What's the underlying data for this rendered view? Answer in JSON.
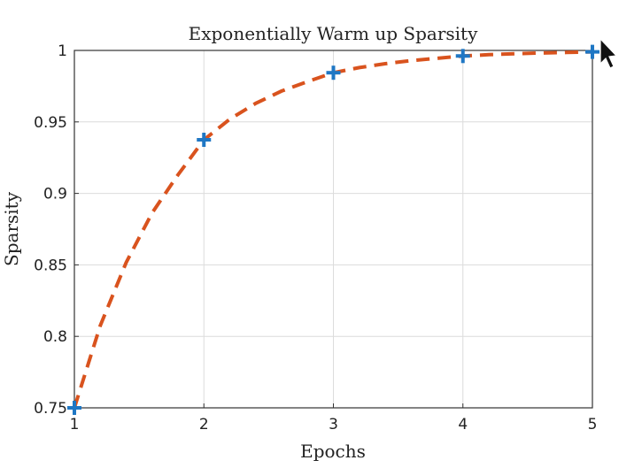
{
  "chart_data": {
    "type": "line",
    "title": "Exponentially Warm up Sparsity",
    "xlabel": "Epochs",
    "ylabel": "Sparsity",
    "xlim": [
      1,
      5
    ],
    "ylim": [
      0.75,
      1
    ],
    "xticks": [
      "1",
      "2",
      "3",
      "4",
      "5"
    ],
    "yticks": [
      "0.75",
      "0.8",
      "0.85",
      "0.9",
      "0.95",
      "1"
    ],
    "grid": true,
    "colors": {
      "curve": "#d9531e",
      "markers": "#1f77c4"
    },
    "curve": {
      "style": "dashed",
      "x": [
        1.0,
        1.2,
        1.4,
        1.6,
        1.8,
        2.0,
        2.2,
        2.4,
        2.6,
        2.8,
        3.0,
        3.2,
        3.4,
        3.6,
        3.8,
        4.0,
        4.2,
        4.4,
        4.6,
        4.8,
        5.0
      ],
      "y": [
        0.75,
        0.8076,
        0.8517,
        0.8864,
        0.913,
        0.9375,
        0.9519,
        0.963,
        0.9716,
        0.9782,
        0.9844,
        0.988,
        0.9907,
        0.9929,
        0.9945,
        0.9961,
        0.997,
        0.9977,
        0.9982,
        0.9986,
        0.999
      ]
    },
    "points": {
      "marker": "plus",
      "x": [
        1,
        2,
        3,
        4,
        5
      ],
      "y": [
        0.75,
        0.9375,
        0.9844,
        0.9961,
        0.999
      ]
    }
  }
}
